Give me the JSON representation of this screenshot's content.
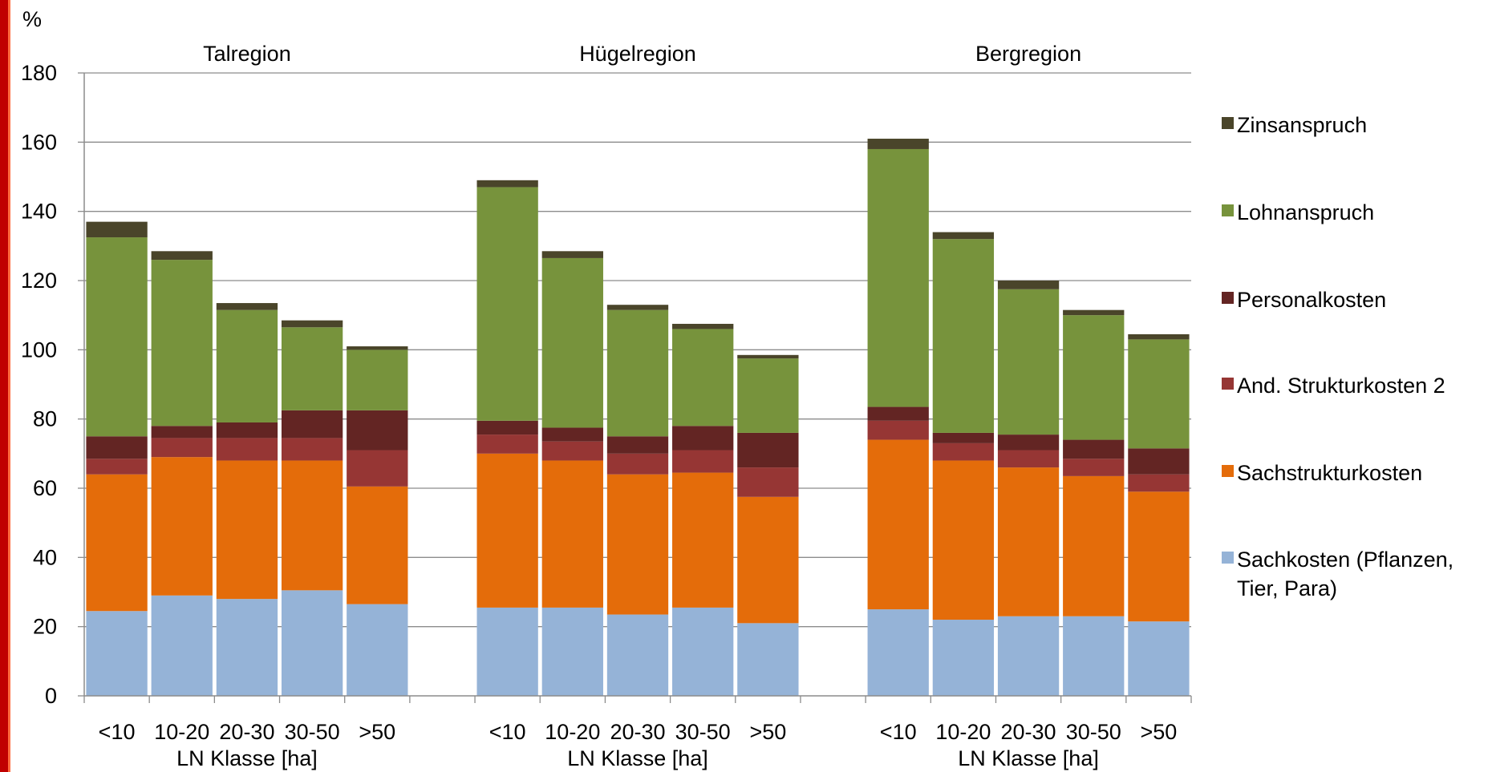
{
  "chart_data": {
    "type": "bar",
    "stacked": true,
    "ylabel": "%",
    "ylim": [
      0,
      180
    ],
    "yticks": [
      0,
      20,
      40,
      60,
      80,
      100,
      120,
      140,
      160,
      180
    ],
    "grid": true,
    "legend_position": "right",
    "groups": [
      {
        "title": "Talregion",
        "xlabel": "LN Klasse [ha]"
      },
      {
        "title": "Hügelregion",
        "xlabel": "LN Klasse [ha]"
      },
      {
        "title": "Bergregion",
        "xlabel": "LN Klasse [ha]"
      }
    ],
    "categories": [
      "<10",
      "10-20",
      "20-30",
      "30-50",
      ">50"
    ],
    "legend_lines": [
      [
        "Zinsanspruch"
      ],
      [
        "Lohnanspruch"
      ],
      [
        "Personalkosten"
      ],
      [
        "And. Strukturkosten 2"
      ],
      [
        "Sachstrukturkosten"
      ],
      [
        "Sachkosten (Pflanzen,",
        "Tier, Para)"
      ]
    ],
    "series": [
      {
        "name": "Sachkosten (Pflanzen, Tier, Para)",
        "color": "#95b3d7",
        "values": [
          [
            24.5,
            29,
            28,
            30.5,
            26.5
          ],
          [
            25.5,
            25.5,
            23.5,
            25.5,
            21
          ],
          [
            25,
            22,
            23,
            23,
            21.5
          ]
        ]
      },
      {
        "name": "Sachstrukturkosten",
        "color": "#e46c0a",
        "values": [
          [
            39.5,
            40,
            40,
            37.5,
            34
          ],
          [
            44.5,
            42.5,
            40.5,
            39,
            36.5
          ],
          [
            49,
            46,
            43,
            40.5,
            37.5
          ]
        ]
      },
      {
        "name": "And. Strukturkosten 2",
        "color": "#963634",
        "values": [
          [
            4.5,
            5.5,
            6.5,
            6.5,
            10.5
          ],
          [
            5.5,
            5.5,
            6,
            6.5,
            8.5
          ],
          [
            5.5,
            5,
            5,
            5,
            5
          ]
        ]
      },
      {
        "name": "Personalkosten",
        "color": "#632523",
        "values": [
          [
            6.5,
            3.5,
            4.5,
            8,
            11.5
          ],
          [
            4,
            4,
            5,
            7,
            10
          ],
          [
            4,
            3,
            4.5,
            5.5,
            7.5
          ]
        ]
      },
      {
        "name": "Lohnanspruch",
        "color": "#77933c",
        "values": [
          [
            57.5,
            48,
            32.5,
            24,
            17.5
          ],
          [
            67.5,
            49,
            36.5,
            28,
            21.5
          ],
          [
            74.5,
            56,
            42,
            36,
            31.5
          ]
        ]
      },
      {
        "name": "Zinsanspruch",
        "color": "#4a452a",
        "values": [
          [
            4.5,
            2.5,
            2,
            2,
            1
          ],
          [
            2,
            2,
            1.5,
            1.5,
            1
          ],
          [
            3,
            2,
            2.5,
            1.5,
            1.5
          ]
        ]
      }
    ]
  }
}
